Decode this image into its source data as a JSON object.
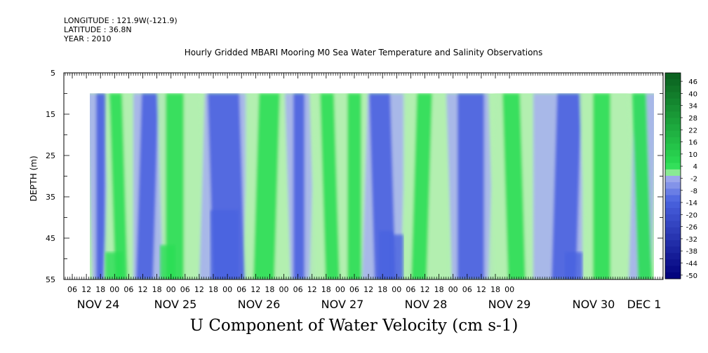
{
  "header": {
    "longitude": "LONGITUDE : 121.9W(-121.9)",
    "latitude": "LATITUDE : 36.8N",
    "year": "YEAR : 2010"
  },
  "chart_data": {
    "type": "heatmap",
    "title": "Hourly Gridded MBARI Mooring M0 Sea Water Temperature and Salinity Observations",
    "xlabel_bottom": "U Component of Water Velocity (cm s-1)",
    "ylabel": "DEPTH (m)",
    "x_range_hours_label": "NOV 23 12:00 to DEC 1 02:00",
    "y_range": [
      5,
      55
    ],
    "y_inverted": true,
    "y_ticks": [
      5,
      15,
      25,
      35,
      45,
      55
    ],
    "data_depth_range": [
      10,
      55
    ],
    "hour_tick_labels": [
      "06",
      "12",
      "18",
      "00",
      "06",
      "12",
      "18",
      "00",
      "06",
      "12",
      "18",
      "00",
      "06",
      "12",
      "18",
      "00",
      "06",
      "12",
      "18",
      "00",
      "06",
      "12",
      "18",
      "00",
      "06",
      "12",
      "18",
      "00",
      "06",
      "12",
      "18",
      "00"
    ],
    "day_labels": [
      "NOV 24",
      "NOV 25",
      "NOV 26",
      "NOV 27",
      "NOV 28",
      "NOV 29",
      "NOV 30",
      "DEC  1"
    ],
    "colorbar_levels": [
      -50,
      -44,
      -38,
      -32,
      -26,
      -20,
      -14,
      -8,
      -2,
      4,
      10,
      16,
      22,
      28,
      34,
      40,
      46
    ],
    "colorbar_labels": [
      "46",
      "40",
      "34",
      "28",
      "22",
      "16",
      "10",
      "4",
      "-2",
      "-8",
      "-14",
      "-20",
      "-26",
      "-32",
      "-38",
      "-44",
      "-50"
    ],
    "colors": {
      "neg_deep": "#00007a",
      "neg_mid": "#4a63e0",
      "neg_light": "#a7b1ee",
      "pos_light": "#b3f0b0",
      "pos_mid": "#2bde54",
      "pos_deep": "#0a5e1e"
    },
    "pattern": "alternating diurnal/semi-diurnal bands of negative (blue) and positive (green) U velocity, roughly vertical, from about -30 to +30 cm/s"
  }
}
